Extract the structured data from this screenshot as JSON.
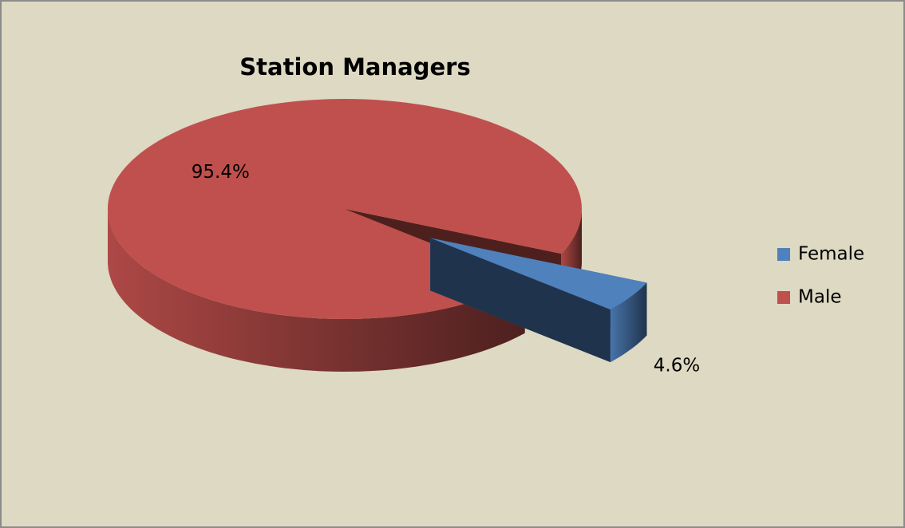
{
  "chart_data": {
    "type": "pie",
    "title": "Station Managers",
    "categories": [
      "Female",
      "Male"
    ],
    "values": [
      4.6,
      95.4
    ],
    "value_labels": [
      "4.6%",
      "95.4%"
    ],
    "colors": [
      "#4f81bd",
      "#c0504d"
    ],
    "legend": "right"
  }
}
